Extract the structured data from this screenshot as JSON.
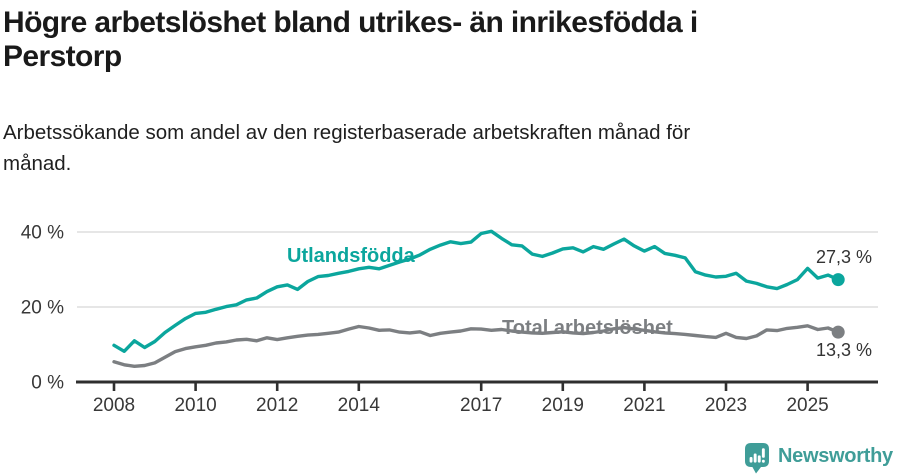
{
  "header": {
    "title_lines": [
      "Högre arbetslöshet bland utrikes- än inrikesfödda i",
      "Perstorp"
    ],
    "subtitle_lines": [
      "Arbetssökande som andel av den registerbaserade arbetskraften månad för",
      "månad."
    ]
  },
  "chart_data": {
    "type": "line",
    "title": "Högre arbetslöshet bland utrikes- än inrikesfödda i Perstorp",
    "subtitle": "Arbetssökande som andel av den registerbaserade arbetskraften månad för månad.",
    "unit": "%",
    "grid": "horizontal-only",
    "legend_position": "inline-labels-on-lines",
    "x_ticks": [
      2008,
      2010,
      2012,
      2014,
      2017,
      2019,
      2021,
      2023,
      2025
    ],
    "y_ticks": [
      {
        "value": 0,
        "label": "0 %"
      },
      {
        "value": 20,
        "label": "20 %"
      },
      {
        "value": 40,
        "label": "40 %"
      }
    ],
    "ylim": [
      0,
      44
    ],
    "x_start": 2008.0,
    "x_step_years": 0.25,
    "x_end": 2025.75,
    "series": [
      {
        "name": "Utlandsfödda",
        "color": "#0ba69d",
        "end_label": "27,3 %",
        "end_value": 27.3,
        "values": [
          9.8,
          8.2,
          11.0,
          9.2,
          10.8,
          13.2,
          15.1,
          16.9,
          18.3,
          18.6,
          19.4,
          20.1,
          20.6,
          21.9,
          22.4,
          24.1,
          25.4,
          25.9,
          24.7,
          26.8,
          28.1,
          28.4,
          29.0,
          29.5,
          30.2,
          30.6,
          30.2,
          31.1,
          32.0,
          32.8,
          33.9,
          35.4,
          36.5,
          37.4,
          36.9,
          37.3,
          39.6,
          40.2,
          38.3,
          36.6,
          36.3,
          34.1,
          33.5,
          34.4,
          35.5,
          35.8,
          34.7,
          36.1,
          35.4,
          36.8,
          38.1,
          36.3,
          34.9,
          36.1,
          34.3,
          33.8,
          33.1,
          29.4,
          28.5,
          28.0,
          28.2,
          29.0,
          26.9,
          26.3,
          25.4,
          24.9,
          26.0,
          27.3,
          30.3,
          27.7,
          28.5,
          27.3
        ]
      },
      {
        "name": "Total arbetslöshet",
        "color": "#7c7f82",
        "end_label": "13,3 %",
        "end_value": 13.3,
        "values": [
          5.4,
          4.6,
          4.2,
          4.4,
          5.1,
          6.6,
          8.1,
          8.9,
          9.4,
          9.8,
          10.4,
          10.7,
          11.2,
          11.4,
          11.0,
          11.8,
          11.3,
          11.8,
          12.2,
          12.5,
          12.7,
          13.0,
          13.3,
          14.1,
          14.8,
          14.4,
          13.8,
          13.9,
          13.3,
          13.1,
          13.4,
          12.4,
          13.0,
          13.3,
          13.6,
          14.2,
          14.1,
          13.8,
          14.0,
          13.6,
          13.3,
          13.1,
          13.0,
          13.2,
          13.4,
          13.1,
          12.9,
          13.2,
          13.6,
          14.2,
          14.5,
          14.1,
          13.8,
          13.4,
          13.1,
          12.9,
          12.7,
          12.4,
          12.1,
          11.9,
          13.0,
          11.9,
          11.6,
          12.3,
          13.9,
          13.7,
          14.3,
          14.6,
          15.0,
          14.0,
          14.4,
          13.3
        ]
      }
    ]
  },
  "colors": {
    "background": "#ffffff",
    "grid": "#dddddd",
    "axis": "#2f2f2f",
    "tick_text": "#383838",
    "value_text": "#333333",
    "accent_teal": "#0ba69d",
    "line_gray": "#7c7f82",
    "brand_teal": "#3f9d98"
  },
  "footer": {
    "brand": "Newsworthy",
    "logo_icon": "bar-chart-speech-bubble-icon"
  }
}
